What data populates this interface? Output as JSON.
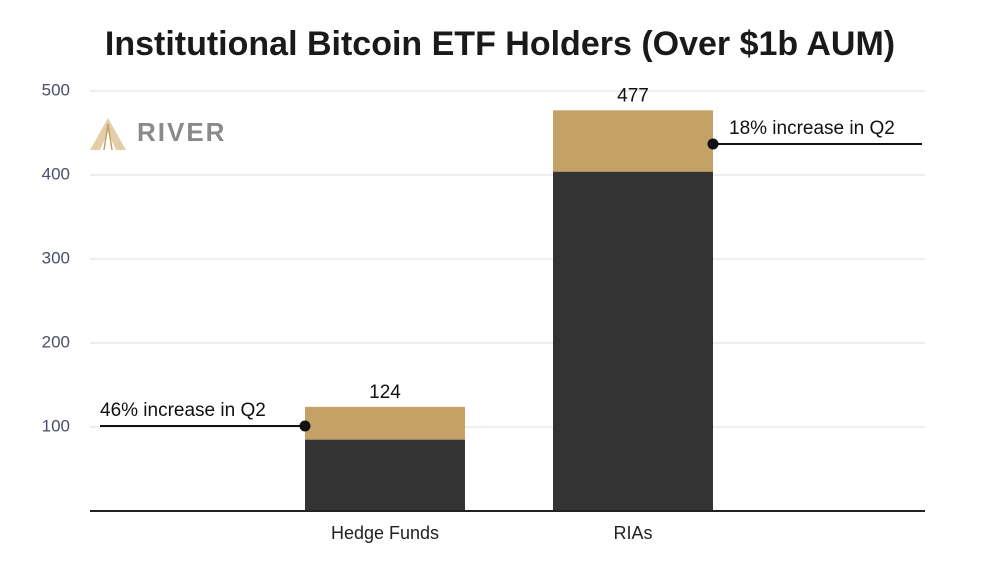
{
  "chart_data": {
    "type": "stacked-bar",
    "title": "Institutional Bitcoin ETF Holders (Over $1b AUM)",
    "logo": "RIVER",
    "categories": [
      "Hedge Funds",
      "RIAs"
    ],
    "series": [
      {
        "color": "#333333",
        "values": [
          85,
          404
        ]
      },
      {
        "color": "#c4a166",
        "values": [
          39,
          73
        ]
      }
    ],
    "total_labels": [
      124,
      477
    ],
    "annotations": [
      "46% increase in Q2",
      "18% increase in Q2"
    ],
    "ylim": [
      0,
      500
    ],
    "yticks": [
      100,
      200,
      300,
      400,
      500
    ],
    "grid": true
  }
}
